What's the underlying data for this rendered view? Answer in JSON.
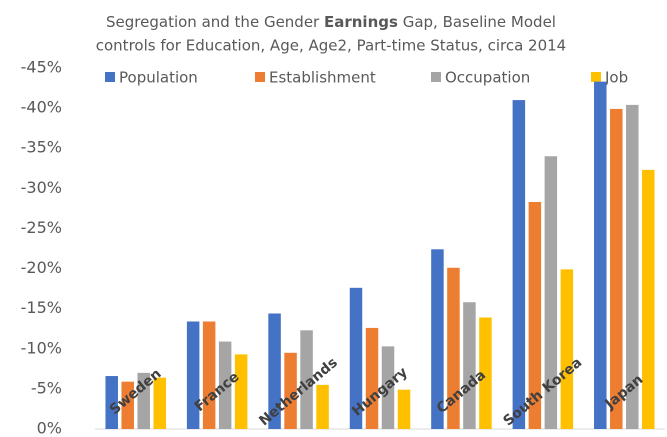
{
  "chart_data": {
    "type": "bar",
    "title": [
      "Segregation and the Gender ",
      "Earnings",
      " Gap, Baseline Model"
    ],
    "subtitle": "controls for Education, Age, Age2, Part-time Status, circa 2014",
    "categories": [
      "Sweden",
      "France",
      "Netherlands",
      "Hungary",
      "Canada",
      "South Korea",
      "Japan"
    ],
    "series": [
      {
        "name": "Population",
        "color": "#4472c4",
        "values": [
          -6.6,
          -13.4,
          -14.4,
          -17.6,
          -22.4,
          -41.0,
          -43.3
        ]
      },
      {
        "name": "Establishment",
        "color": "#ed7d31",
        "values": [
          -5.9,
          -13.4,
          -9.5,
          -12.6,
          -20.1,
          -28.3,
          -39.9
        ]
      },
      {
        "name": "Occupation",
        "color": "#a5a5a5",
        "values": [
          -7.0,
          -10.9,
          -12.3,
          -10.3,
          -15.8,
          -34.0,
          -40.4
        ]
      },
      {
        "name": "Job",
        "color": "#ffc000",
        "values": [
          -6.4,
          -9.3,
          -5.5,
          -4.9,
          -13.9,
          -19.9,
          -32.3
        ]
      }
    ],
    "ylim": [
      0,
      -45
    ],
    "yticks": [
      {
        "value": 0,
        "label": "0%"
      },
      {
        "value": -5,
        "label": "-5%"
      },
      {
        "value": -10,
        "label": "-10%"
      },
      {
        "value": -15,
        "label": "-15%"
      },
      {
        "value": -20,
        "label": "-20%"
      },
      {
        "value": -25,
        "label": "-25%"
      },
      {
        "value": -30,
        "label": "-30%"
      },
      {
        "value": -35,
        "label": "-35%"
      },
      {
        "value": -40,
        "label": "-40%"
      },
      {
        "value": -45,
        "label": "-45%"
      }
    ],
    "legend": "top",
    "grid": false
  }
}
